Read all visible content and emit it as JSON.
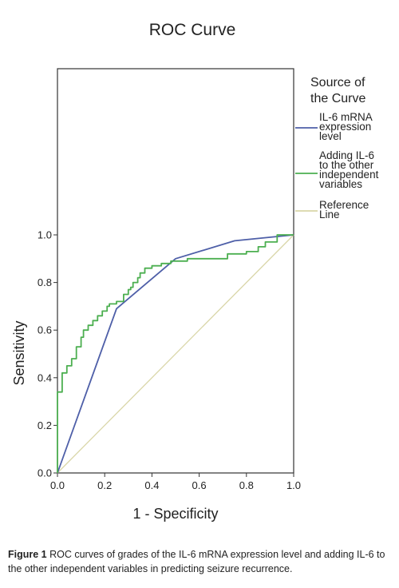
{
  "chart_data": {
    "type": "line",
    "title": "ROC Curve",
    "xlabel": "1 - Specificity",
    "ylabel": "Sensitivity",
    "xlim": [
      0,
      1
    ],
    "ylim": [
      0,
      1
    ],
    "xticks": [
      "0.0",
      "0.2",
      "0.4",
      "0.6",
      "0.8",
      "1.0"
    ],
    "yticks": [
      "0.0",
      "0.2",
      "0.4",
      "0.6",
      "0.8",
      "1.0"
    ],
    "grid": false,
    "legend": {
      "title": "Source of the Curve",
      "title_lines": [
        "Source of",
        "the Curve"
      ],
      "placement": "right"
    },
    "series": [
      {
        "name": "IL-6 mRNA expression level",
        "legend_lines": [
          "IL-6 mRNA",
          "expression",
          "level"
        ],
        "color": "#4e5fa8",
        "step": false,
        "points": [
          [
            0,
            0
          ],
          [
            0.25,
            0.69
          ],
          [
            0.5,
            0.9
          ],
          [
            0.75,
            0.975
          ],
          [
            1,
            1
          ]
        ]
      },
      {
        "name": "Adding IL-6 to the other independent variables",
        "legend_lines": [
          "Adding IL-6",
          "to the other",
          "independent",
          "variables"
        ],
        "color": "#4caf50",
        "step": true,
        "points": [
          [
            0,
            0
          ],
          [
            0,
            0.34
          ],
          [
            0.02,
            0.34
          ],
          [
            0.02,
            0.42
          ],
          [
            0.04,
            0.42
          ],
          [
            0.04,
            0.45
          ],
          [
            0.06,
            0.45
          ],
          [
            0.06,
            0.48
          ],
          [
            0.08,
            0.48
          ],
          [
            0.08,
            0.53
          ],
          [
            0.1,
            0.53
          ],
          [
            0.1,
            0.57
          ],
          [
            0.11,
            0.57
          ],
          [
            0.11,
            0.6
          ],
          [
            0.13,
            0.6
          ],
          [
            0.13,
            0.62
          ],
          [
            0.15,
            0.62
          ],
          [
            0.15,
            0.64
          ],
          [
            0.17,
            0.64
          ],
          [
            0.17,
            0.66
          ],
          [
            0.19,
            0.66
          ],
          [
            0.19,
            0.68
          ],
          [
            0.21,
            0.68
          ],
          [
            0.21,
            0.7
          ],
          [
            0.22,
            0.7
          ],
          [
            0.22,
            0.71
          ],
          [
            0.25,
            0.71
          ],
          [
            0.25,
            0.72
          ],
          [
            0.28,
            0.72
          ],
          [
            0.28,
            0.75
          ],
          [
            0.3,
            0.75
          ],
          [
            0.3,
            0.77
          ],
          [
            0.31,
            0.77
          ],
          [
            0.31,
            0.78
          ],
          [
            0.32,
            0.78
          ],
          [
            0.32,
            0.8
          ],
          [
            0.34,
            0.8
          ],
          [
            0.34,
            0.82
          ],
          [
            0.35,
            0.82
          ],
          [
            0.35,
            0.84
          ],
          [
            0.37,
            0.84
          ],
          [
            0.37,
            0.86
          ],
          [
            0.4,
            0.86
          ],
          [
            0.4,
            0.87
          ],
          [
            0.44,
            0.87
          ],
          [
            0.44,
            0.88
          ],
          [
            0.48,
            0.88
          ],
          [
            0.48,
            0.89
          ],
          [
            0.55,
            0.89
          ],
          [
            0.55,
            0.9
          ],
          [
            0.72,
            0.9
          ],
          [
            0.72,
            0.92
          ],
          [
            0.8,
            0.92
          ],
          [
            0.8,
            0.93
          ],
          [
            0.85,
            0.93
          ],
          [
            0.85,
            0.95
          ],
          [
            0.88,
            0.95
          ],
          [
            0.88,
            0.97
          ],
          [
            0.93,
            0.97
          ],
          [
            0.93,
            1.0
          ],
          [
            1,
            1
          ]
        ]
      },
      {
        "name": "Reference Line",
        "legend_lines": [
          "Reference",
          "Line"
        ],
        "color": "#d9d6a8",
        "step": false,
        "points": [
          [
            0,
            0
          ],
          [
            1,
            1
          ]
        ]
      }
    ]
  },
  "caption": {
    "label": "Figure 1",
    "text": "ROC curves of grades of the IL-6 mRNA expression level and adding IL-6 to the other independent variables in predicting seizure recurrence."
  }
}
